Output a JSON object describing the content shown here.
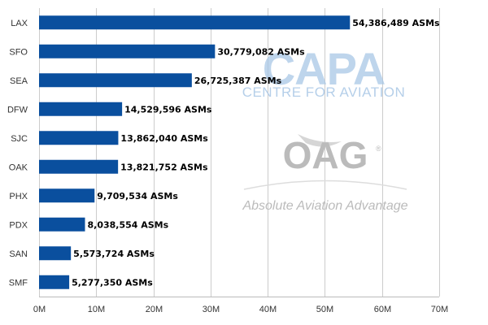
{
  "chart_data": {
    "type": "bar",
    "orientation": "horizontal",
    "categories": [
      "LAX",
      "SFO",
      "SEA",
      "DFW",
      "SJC",
      "OAK",
      "PHX",
      "PDX",
      "SAN",
      "SMF"
    ],
    "values": [
      54386489,
      30779082,
      26725387,
      14529596,
      13862040,
      13821752,
      9709534,
      8038554,
      5573724,
      5277350
    ],
    "data_labels": [
      "54,386,489 ASMs",
      "30,779,082 ASMs",
      "26,725,387 ASMs",
      "14,529,596 ASMs",
      "13,862,040 ASMs",
      "13,821,752 ASMs",
      "9,709,534 ASMs",
      "8,038,554 ASMs",
      "5,573,724 ASMs",
      "5,277,350 ASMs"
    ],
    "x_ticks": [
      0,
      10000000,
      20000000,
      30000000,
      40000000,
      50000000,
      60000000,
      70000000
    ],
    "x_tick_labels": [
      "0M",
      "10M",
      "20M",
      "30M",
      "40M",
      "50M",
      "60M",
      "70M"
    ],
    "xlim": [
      0,
      70000000
    ],
    "grid": "vertical",
    "bar_color": "#0a4f9e"
  },
  "watermarks": {
    "capa": "CAPA",
    "capa_sub": "CENTRE FOR AVIATION",
    "oag": "OAG",
    "oag_tagline": "Absolute Aviation Advantage",
    "capa_color": "#a9c7e6",
    "oag_color": "#bbbbbb"
  }
}
